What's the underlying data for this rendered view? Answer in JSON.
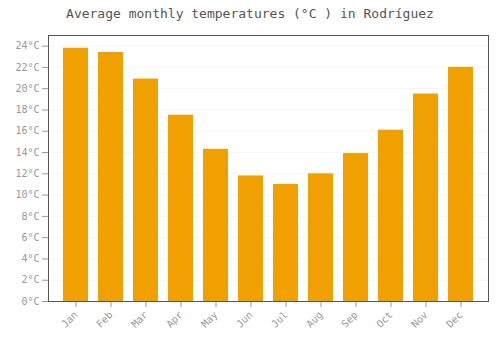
{
  "chart_data": {
    "type": "bar",
    "title": "Average monthly temperatures (°C ) in Rodríguez",
    "categories": [
      "Jan",
      "Feb",
      "Mar",
      "Apr",
      "May",
      "Jun",
      "Jul",
      "Aug",
      "Sep",
      "Oct",
      "Nov",
      "Dec"
    ],
    "values": [
      23.8,
      23.4,
      20.9,
      17.5,
      14.3,
      11.8,
      11.0,
      12.0,
      13.9,
      16.1,
      19.5,
      22.0
    ],
    "color": "#F0A000",
    "ylim": [
      0,
      25
    ],
    "yticks": [
      {
        "value": 0,
        "label": "0°C"
      },
      {
        "value": 2,
        "label": "2°C"
      },
      {
        "value": 4,
        "label": "4°C"
      },
      {
        "value": 6,
        "label": "6°C"
      },
      {
        "value": 8,
        "label": "8°C"
      },
      {
        "value": 10,
        "label": "10°C"
      },
      {
        "value": 12,
        "label": "12°C"
      },
      {
        "value": 14,
        "label": "14°C"
      },
      {
        "value": 16,
        "label": "16°C"
      },
      {
        "value": 18,
        "label": "18°C"
      },
      {
        "value": 20,
        "label": "20°C"
      },
      {
        "value": 22,
        "label": "22°C"
      },
      {
        "value": 24,
        "label": "24°C"
      }
    ],
    "grid": true
  }
}
